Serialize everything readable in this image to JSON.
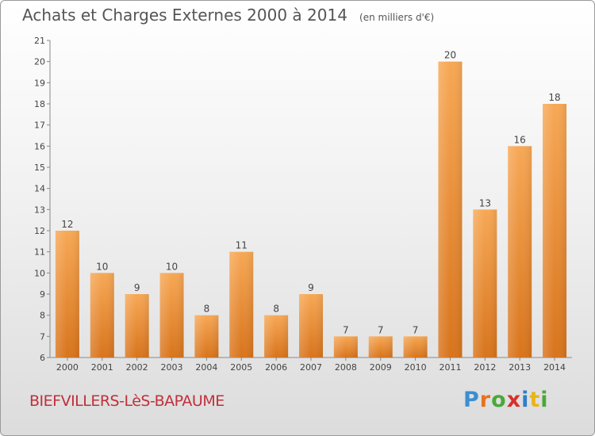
{
  "header": {
    "title": "Achats et Charges Externes 2000 à 2014",
    "subtitle": "(en milliers d'€)"
  },
  "footer": {
    "commune": "BIEFVILLERS-LèS-BAPAUME",
    "logo_letters": [
      "P",
      "r",
      "o",
      "x",
      "i",
      "t",
      "i"
    ],
    "logo_colors": [
      "#3a8fd0",
      "#e8731a",
      "#4aa83a",
      "#d8302a",
      "#2f7fc8",
      "#e8b41a",
      "#4aa83a"
    ]
  },
  "colors": {
    "bar_top": "#f7a855",
    "bar_bottom": "#d8741c",
    "axis": "#888888",
    "text": "#444444"
  },
  "chart_data": {
    "type": "bar",
    "categories": [
      "2000",
      "2001",
      "2002",
      "2003",
      "2004",
      "2005",
      "2006",
      "2007",
      "2008",
      "2009",
      "2010",
      "2011",
      "2012",
      "2013",
      "2014"
    ],
    "values": [
      12,
      10,
      9,
      10,
      8,
      11,
      8,
      9,
      7,
      7,
      7,
      20,
      13,
      16,
      18
    ],
    "title": "Achats et Charges Externes 2000 à 2014",
    "subtitle": "(en milliers d'€)",
    "ylim": [
      6,
      21
    ],
    "yticks": [
      6,
      7,
      8,
      9,
      10,
      11,
      12,
      13,
      14,
      15,
      16,
      17,
      18,
      19,
      20,
      21
    ],
    "grid": false,
    "legend": "none"
  }
}
